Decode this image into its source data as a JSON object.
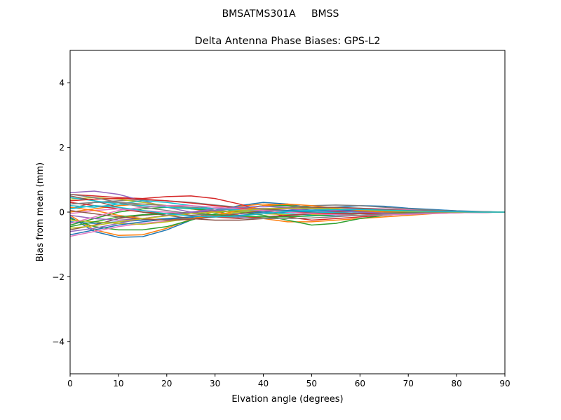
{
  "chart_data": {
    "type": "line",
    "suptitle": "BMSATMS301A     BMSS",
    "title": "Delta Antenna Phase Biases: GPS-L2",
    "xlabel": "Elvation angle (degrees)",
    "ylabel": "Bias from mean (mm)",
    "xlim": [
      0,
      90
    ],
    "ylim": [
      -5,
      5
    ],
    "xticks": [
      0,
      10,
      20,
      30,
      40,
      50,
      60,
      70,
      80,
      90
    ],
    "yticks": [
      -4,
      -2,
      0,
      2,
      4
    ],
    "x": [
      0,
      5,
      10,
      15,
      20,
      25,
      30,
      35,
      40,
      45,
      50,
      55,
      60,
      65,
      70,
      75,
      80,
      85,
      90
    ],
    "colors": [
      "#1f77b4",
      "#ff7f0e",
      "#2ca02c",
      "#d62728",
      "#9467bd",
      "#8c564b",
      "#e377c2",
      "#7f7f7f",
      "#bcbd22",
      "#17becf"
    ],
    "grid": false,
    "legend": "none",
    "series": [
      {
        "values": [
          -0.15,
          -0.6,
          -0.78,
          -0.76,
          -0.55,
          -0.25,
          0.05,
          0.2,
          0.3,
          0.25,
          0.12,
          0.05,
          0.0,
          -0.02,
          -0.03,
          -0.02,
          -0.01,
          -0.01,
          0.0
        ]
      },
      {
        "values": [
          -0.1,
          -0.55,
          -0.72,
          -0.7,
          -0.5,
          -0.22,
          0.03,
          0.18,
          0.25,
          0.22,
          0.12,
          0.05,
          0.0,
          -0.02,
          -0.03,
          -0.02,
          -0.01,
          0.0,
          0.0
        ]
      },
      {
        "values": [
          -0.2,
          -0.45,
          -0.55,
          -0.55,
          -0.45,
          -0.25,
          -0.05,
          0.1,
          0.2,
          0.2,
          0.15,
          0.08,
          0.03,
          0.0,
          -0.02,
          -0.02,
          -0.01,
          0.0,
          0.0
        ]
      },
      {
        "values": [
          0.55,
          0.5,
          0.45,
          0.42,
          0.48,
          0.5,
          0.42,
          0.25,
          0.05,
          -0.15,
          -0.25,
          -0.2,
          -0.15,
          -0.1,
          -0.05,
          -0.03,
          -0.02,
          -0.01,
          0.0
        ]
      },
      {
        "values": [
          0.6,
          0.65,
          0.55,
          0.35,
          0.15,
          0.0,
          -0.1,
          -0.15,
          -0.15,
          -0.1,
          -0.05,
          0.0,
          0.02,
          0.02,
          0.01,
          0.01,
          0.0,
          0.0,
          0.0
        ]
      },
      {
        "values": [
          -0.55,
          -0.4,
          -0.2,
          -0.1,
          -0.05,
          0.0,
          0.02,
          0.03,
          0.04,
          0.05,
          0.04,
          0.03,
          0.02,
          0.02,
          0.01,
          0.0,
          0.0,
          0.0,
          0.0
        ]
      },
      {
        "values": [
          -0.75,
          -0.6,
          -0.45,
          -0.35,
          -0.28,
          -0.22,
          -0.15,
          -0.05,
          0.05,
          0.1,
          0.12,
          0.1,
          0.08,
          0.05,
          0.03,
          0.02,
          0.01,
          0.0,
          0.0
        ]
      },
      {
        "values": [
          0.1,
          0.3,
          0.35,
          0.38,
          0.35,
          0.3,
          0.22,
          0.15,
          0.08,
          0.05,
          0.04,
          0.03,
          0.02,
          0.02,
          0.01,
          0.0,
          0.0,
          0.0,
          0.0
        ]
      },
      {
        "values": [
          0.4,
          0.45,
          0.4,
          0.3,
          0.2,
          0.12,
          0.05,
          0.0,
          -0.05,
          -0.08,
          -0.08,
          -0.06,
          -0.04,
          -0.02,
          -0.01,
          0.0,
          0.0,
          0.0,
          0.0
        ]
      },
      {
        "values": [
          0.2,
          0.15,
          0.25,
          0.35,
          0.3,
          0.2,
          0.1,
          0.05,
          0.0,
          -0.05,
          -0.1,
          -0.12,
          -0.1,
          -0.06,
          -0.03,
          -0.01,
          0.0,
          0.0,
          0.0
        ]
      },
      {
        "values": [
          -0.3,
          -0.35,
          -0.3,
          -0.25,
          -0.2,
          -0.15,
          -0.1,
          -0.05,
          0.0,
          0.05,
          0.1,
          0.15,
          0.2,
          0.18,
          0.12,
          0.08,
          0.04,
          0.02,
          0.0
        ]
      },
      {
        "values": [
          0.0,
          0.1,
          0.2,
          0.25,
          0.2,
          0.1,
          0.0,
          -0.1,
          -0.2,
          -0.3,
          -0.3,
          -0.25,
          -0.2,
          -0.15,
          -0.1,
          -0.05,
          -0.02,
          -0.01,
          0.0
        ]
      },
      {
        "values": [
          -0.4,
          -0.2,
          0.0,
          0.1,
          0.15,
          0.1,
          0.05,
          0.0,
          -0.1,
          -0.25,
          -0.4,
          -0.35,
          -0.2,
          -0.1,
          -0.05,
          -0.02,
          0.0,
          0.0,
          0.0
        ]
      },
      {
        "values": [
          0.3,
          0.2,
          0.1,
          0.0,
          -0.05,
          -0.1,
          -0.15,
          -0.2,
          -0.15,
          -0.1,
          -0.05,
          0.0,
          0.05,
          0.08,
          0.06,
          0.04,
          0.02,
          0.01,
          0.0
        ]
      },
      {
        "values": [
          -0.6,
          -0.5,
          -0.35,
          -0.2,
          -0.1,
          0.0,
          0.05,
          0.1,
          0.12,
          0.1,
          0.05,
          0.0,
          -0.05,
          -0.08,
          -0.06,
          -0.04,
          -0.02,
          -0.01,
          0.0
        ]
      },
      {
        "values": [
          0.5,
          0.35,
          0.15,
          0.0,
          -0.1,
          -0.2,
          -0.25,
          -0.25,
          -0.2,
          -0.12,
          -0.05,
          0.0,
          0.03,
          0.03,
          0.02,
          0.01,
          0.0,
          0.0,
          0.0
        ]
      },
      {
        "values": [
          -0.05,
          0.05,
          0.1,
          0.05,
          0.0,
          -0.05,
          -0.1,
          -0.1,
          -0.05,
          0.0,
          0.05,
          0.1,
          0.12,
          0.1,
          0.07,
          0.04,
          0.02,
          0.01,
          0.0
        ]
      },
      {
        "values": [
          0.25,
          0.3,
          0.3,
          0.25,
          0.2,
          0.15,
          0.1,
          0.08,
          0.1,
          0.15,
          0.2,
          0.22,
          0.2,
          0.15,
          0.1,
          0.06,
          0.03,
          0.01,
          0.0
        ]
      },
      {
        "values": [
          -0.25,
          -0.3,
          -0.35,
          -0.38,
          -0.3,
          -0.2,
          -0.1,
          0.0,
          0.05,
          0.0,
          -0.05,
          -0.08,
          -0.1,
          -0.08,
          -0.05,
          -0.03,
          -0.01,
          0.0,
          0.0
        ]
      },
      {
        "values": [
          0.45,
          0.35,
          0.25,
          0.2,
          0.15,
          0.12,
          0.1,
          0.08,
          0.05,
          0.02,
          0.0,
          -0.02,
          -0.03,
          -0.03,
          -0.02,
          -0.01,
          0.0,
          0.0,
          0.0
        ]
      },
      {
        "values": [
          -0.7,
          -0.55,
          -0.4,
          -0.3,
          -0.22,
          -0.18,
          -0.15,
          -0.1,
          -0.05,
          0.0,
          0.03,
          0.05,
          0.05,
          0.04,
          0.03,
          0.02,
          0.01,
          0.0,
          0.0
        ]
      },
      {
        "values": [
          0.15,
          0.05,
          -0.1,
          -0.2,
          -0.25,
          -0.2,
          -0.1,
          0.05,
          0.2,
          0.25,
          0.2,
          0.12,
          0.05,
          0.0,
          -0.02,
          -0.02,
          -0.01,
          0.0,
          0.0
        ]
      },
      {
        "values": [
          -0.45,
          -0.3,
          -0.15,
          -0.08,
          -0.05,
          -0.05,
          -0.08,
          -0.12,
          -0.15,
          -0.15,
          -0.12,
          -0.08,
          -0.05,
          -0.03,
          -0.02,
          -0.01,
          0.0,
          0.0,
          0.0
        ]
      },
      {
        "values": [
          0.35,
          0.4,
          0.42,
          0.4,
          0.35,
          0.28,
          0.2,
          0.12,
          0.05,
          0.0,
          -0.03,
          -0.05,
          -0.05,
          -0.04,
          -0.03,
          -0.02,
          -0.01,
          0.0,
          0.0
        ]
      },
      {
        "values": [
          -0.1,
          -0.2,
          -0.25,
          -0.2,
          -0.1,
          0.0,
          0.1,
          0.15,
          0.18,
          0.15,
          0.1,
          0.05,
          0.0,
          -0.03,
          -0.04,
          -0.03,
          -0.02,
          -0.01,
          0.0
        ]
      },
      {
        "values": [
          0.05,
          -0.05,
          -0.15,
          -0.22,
          -0.25,
          -0.22,
          -0.15,
          -0.05,
          0.05,
          0.12,
          0.15,
          0.15,
          0.12,
          0.08,
          0.05,
          0.03,
          0.01,
          0.0,
          0.0
        ]
      },
      {
        "values": [
          -0.35,
          -0.15,
          0.05,
          0.15,
          0.2,
          0.2,
          0.15,
          0.1,
          0.05,
          0.0,
          -0.05,
          -0.08,
          -0.1,
          -0.09,
          -0.07,
          -0.04,
          -0.02,
          -0.01,
          0.0
        ]
      },
      {
        "values": [
          0.55,
          0.45,
          0.3,
          0.15,
          0.05,
          -0.05,
          -0.12,
          -0.18,
          -0.2,
          -0.2,
          -0.18,
          -0.14,
          -0.1,
          -0.06,
          -0.03,
          -0.01,
          0.0,
          0.0,
          0.0
        ]
      },
      {
        "values": [
          -0.5,
          -0.42,
          -0.3,
          -0.2,
          -0.12,
          -0.05,
          0.0,
          0.05,
          0.1,
          0.12,
          0.12,
          0.1,
          0.07,
          0.04,
          0.02,
          0.01,
          0.0,
          0.0,
          0.0
        ]
      },
      {
        "values": [
          0.1,
          0.2,
          0.15,
          0.05,
          -0.05,
          -0.12,
          -0.15,
          -0.12,
          -0.05,
          0.02,
          0.06,
          0.08,
          0.08,
          0.06,
          0.04,
          0.02,
          0.01,
          0.0,
          0.0
        ]
      }
    ]
  }
}
